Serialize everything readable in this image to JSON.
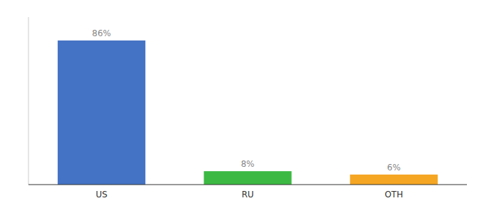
{
  "chart_data": {
    "type": "bar",
    "categories": [
      "US",
      "RU",
      "OTH"
    ],
    "values": [
      86,
      8,
      6
    ],
    "value_labels": [
      "86%",
      "8%",
      "6%"
    ],
    "colors": [
      "#4472C4",
      "#3CB943",
      "#F5A623"
    ],
    "ylim": [
      0,
      100
    ],
    "data_labels": true,
    "tick_labels": "x",
    "grid": false
  }
}
